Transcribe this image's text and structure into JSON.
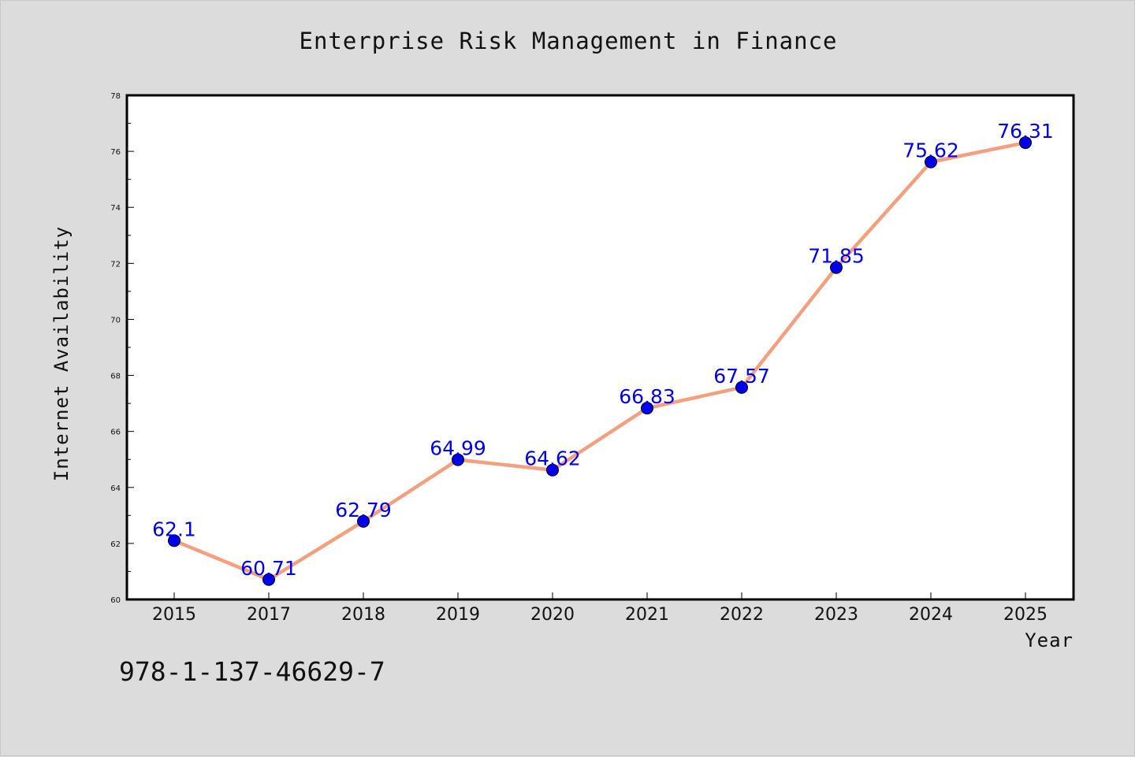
{
  "chart_data": {
    "type": "line",
    "title": "Enterprise Risk Management in Finance",
    "xlabel": "Year",
    "ylabel": "Internet Availability",
    "categories": [
      "2015",
      "2017",
      "2018",
      "2019",
      "2020",
      "2021",
      "2022",
      "2023",
      "2024",
      "2025"
    ],
    "series": [
      {
        "values": [
          62.1,
          60.71,
          62.79,
          64.99,
          64.62,
          66.83,
          67.57,
          71.85,
          75.62,
          76.31
        ]
      }
    ],
    "data_labels": [
      "62.1",
      "60.71",
      "62.79",
      "64.99",
      "64.62",
      "66.83",
      "67.57",
      "71.85",
      "75.62",
      "76.31"
    ],
    "ylim": [
      60,
      78
    ],
    "yticks": [
      60,
      62,
      64,
      66,
      68,
      70,
      72,
      74,
      76,
      78
    ],
    "grid": false,
    "legend": "none",
    "colors": {
      "line": "#f4a07f",
      "marker": "#0000ee",
      "data_label": "#0000ee",
      "background": "#dcdcdc",
      "plot_background": "#ffffff"
    }
  },
  "footer": {
    "isbn": "978-1-137-46629-7"
  }
}
